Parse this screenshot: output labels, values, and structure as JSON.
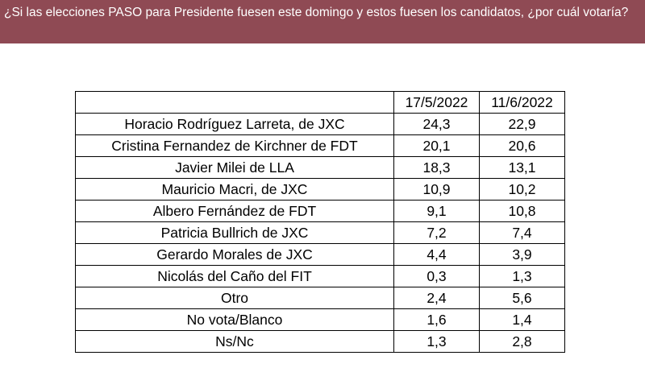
{
  "header": {
    "question": "¿Si las elecciones PASO para Presidente fuesen este domingo y estos fuesen los candidatos, ¿por cuál votaría?"
  },
  "table": {
    "corner": "",
    "columns": [
      "17/5/2022",
      "11/6/2022"
    ],
    "rows": [
      {
        "candidate": "Horacio Rodríguez Larreta, de JXC",
        "v1": "24,3",
        "v2": "22,9"
      },
      {
        "candidate": "Cristina Fernandez de Kirchner de FDT",
        "v1": "20,1",
        "v2": "20,6"
      },
      {
        "candidate": "Javier Milei de LLA",
        "v1": "18,3",
        "v2": "13,1"
      },
      {
        "candidate": "Mauricio Macri, de JXC",
        "v1": "10,9",
        "v2": "10,2"
      },
      {
        "candidate": "Albero Fernández de FDT",
        "v1": "9,1",
        "v2": "10,8"
      },
      {
        "candidate": "Patricia Bullrich de JXC",
        "v1": "7,2",
        "v2": "7,4"
      },
      {
        "candidate": "Gerardo Morales de JXC",
        "v1": "4,4",
        "v2": "3,9"
      },
      {
        "candidate": "Nicolás del Caño del FIT",
        "v1": "0,3",
        "v2": "1,3"
      },
      {
        "candidate": "Otro",
        "v1": "2,4",
        "v2": "5,6"
      },
      {
        "candidate": "No vota/Blanco",
        "v1": "1,6",
        "v2": "1,4"
      },
      {
        "candidate": "Ns/Nc",
        "v1": "1,3",
        "v2": "2,8"
      }
    ]
  },
  "colors": {
    "header_background": "#8f4a54",
    "header_text": "#ffffff"
  }
}
